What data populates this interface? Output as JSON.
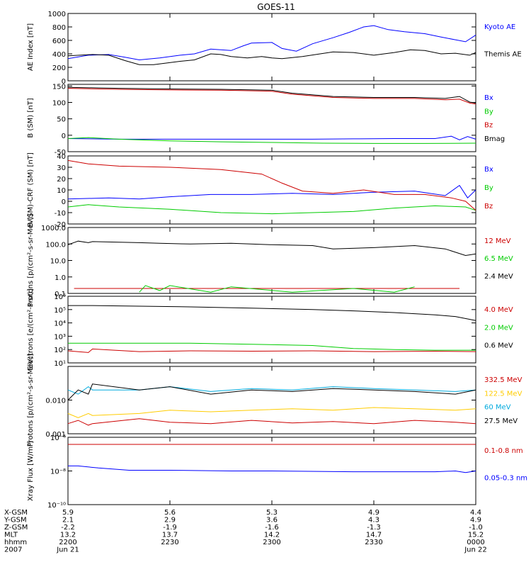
{
  "title": "GOES-11",
  "x_axis": {
    "row_labels": [
      "X-GSM",
      "Y-GSM",
      "Z-GSM",
      "MLT",
      "hhmm",
      "2007"
    ],
    "ticks": [
      {
        "t": 0,
        "values": [
          "5.9",
          "2.1",
          "-2.2",
          "13.2",
          "2200",
          "Jun 21"
        ]
      },
      {
        "t": 0.5,
        "values": [
          "5.6",
          "2.9",
          "-1.9",
          "13.7",
          "2230",
          ""
        ]
      },
      {
        "t": 1,
        "values": [
          "5.3",
          "3.6",
          "-1.6",
          "14.2",
          "2300",
          ""
        ]
      },
      {
        "t": 1.5,
        "values": [
          "4.9",
          "4.3",
          "-1.3",
          "14.7",
          "2330",
          ""
        ]
      },
      {
        "t": 2,
        "values": [
          "4.4",
          "4.9",
          "-1.0",
          "15.2",
          "0000",
          "Jun 22"
        ]
      }
    ],
    "range_hours": [
      0,
      2
    ]
  },
  "chart_data": [
    {
      "type": "line",
      "id": "ae",
      "ylabel": "AE Index [nT]",
      "scale": "linear",
      "ylim": [
        0,
        1000
      ],
      "yticks": [
        {
          "v": 0,
          "label": "0"
        },
        {
          "v": 200,
          "label": "200"
        },
        {
          "v": 400,
          "label": "400"
        },
        {
          "v": 600,
          "label": "600"
        },
        {
          "v": 800,
          "label": "800"
        },
        {
          "v": 1000,
          "label": "1000"
        }
      ],
      "series": [
        {
          "name": "Kyoto AE",
          "color": "#0000ff",
          "t": [
            0,
            0.1,
            0.2,
            0.28,
            0.35,
            0.45,
            0.55,
            0.62,
            0.7,
            0.8,
            0.86,
            0.9,
            1.0,
            1.05,
            1.12,
            1.2,
            1.3,
            1.38,
            1.45,
            1.5,
            1.57,
            1.65,
            1.75,
            1.83,
            1.9,
            1.95,
            2.0
          ],
          "values": [
            330,
            380,
            390,
            350,
            310,
            340,
            380,
            400,
            470,
            450,
            520,
            560,
            570,
            480,
            440,
            550,
            640,
            720,
            800,
            820,
            760,
            730,
            700,
            650,
            610,
            580,
            680
          ]
        },
        {
          "name": "Themis AE",
          "color": "#000000",
          "t": [
            0,
            0.12,
            0.2,
            0.28,
            0.35,
            0.42,
            0.55,
            0.62,
            0.7,
            0.75,
            0.8,
            0.88,
            0.95,
            1.0,
            1.05,
            1.15,
            1.3,
            1.4,
            1.5,
            1.6,
            1.68,
            1.75,
            1.83,
            1.9,
            1.97,
            2.0
          ],
          "values": [
            370,
            390,
            380,
            300,
            240,
            240,
            290,
            310,
            400,
            390,
            360,
            340,
            360,
            340,
            330,
            360,
            430,
            420,
            380,
            420,
            460,
            450,
            400,
            410,
            380,
            420
          ]
        }
      ]
    },
    {
      "type": "line",
      "id": "bsm",
      "ylabel": "B (SM) [nT]",
      "scale": "linear",
      "ylim": [
        -50,
        155
      ],
      "yticks": [
        {
          "v": -50,
          "label": "-50"
        },
        {
          "v": 0,
          "label": "0"
        },
        {
          "v": 50,
          "label": "50"
        },
        {
          "v": 100,
          "label": "100"
        },
        {
          "v": 150,
          "label": "150"
        }
      ],
      "series": [
        {
          "name": "Bx",
          "color": "#0000ff",
          "t": [
            0,
            0.25,
            0.5,
            0.75,
            1.0,
            1.2,
            1.4,
            1.6,
            1.8,
            1.88,
            1.92,
            1.96,
            2.0
          ],
          "values": [
            -10,
            -12,
            -12,
            -12,
            -12,
            -12,
            -11,
            -10,
            -10,
            -3,
            -14,
            -4,
            -12
          ]
        },
        {
          "name": "By",
          "color": "#00cc00",
          "t": [
            0,
            0.1,
            0.25,
            0.5,
            0.75,
            1.0,
            1.25,
            1.5,
            1.75,
            2.0
          ],
          "values": [
            -10,
            -7,
            -12,
            -17,
            -20,
            -22,
            -24,
            -25,
            -25,
            -24
          ]
        },
        {
          "name": "Bz",
          "color": "#cc0000",
          "t": [
            0,
            0.25,
            0.5,
            0.75,
            1.0,
            1.1,
            1.3,
            1.5,
            1.7,
            1.85,
            1.92,
            1.97,
            2.0
          ],
          "values": [
            143,
            140,
            138,
            137,
            134,
            125,
            115,
            112,
            112,
            108,
            110,
            98,
            95
          ]
        },
        {
          "name": "Bmag",
          "color": "#000000",
          "t": [
            0,
            0.25,
            0.5,
            0.75,
            1.0,
            1.1,
            1.3,
            1.5,
            1.7,
            1.85,
            1.92,
            1.97,
            2.0
          ],
          "values": [
            146,
            143,
            141,
            140,
            137,
            128,
            118,
            115,
            115,
            112,
            118,
            101,
            98
          ]
        }
      ]
    },
    {
      "type": "line",
      "id": "bcrf",
      "ylabel": "B (SM)-CRF (SM) [nT]",
      "scale": "linear",
      "ylim": [
        -20,
        40
      ],
      "yticks": [
        {
          "v": -20,
          "label": "-20"
        },
        {
          "v": -10,
          "label": "-10"
        },
        {
          "v": 0,
          "label": "0"
        },
        {
          "v": 10,
          "label": "10"
        },
        {
          "v": 20,
          "label": "20"
        },
        {
          "v": 30,
          "label": "30"
        },
        {
          "v": 40,
          "label": "40"
        }
      ],
      "series": [
        {
          "name": "Bx",
          "color": "#0000ff",
          "t": [
            0,
            0.2,
            0.35,
            0.5,
            0.7,
            0.9,
            1.1,
            1.3,
            1.5,
            1.7,
            1.85,
            1.92,
            1.96,
            2.0
          ],
          "values": [
            2,
            3,
            2,
            4,
            6,
            6,
            7,
            6,
            8,
            9,
            5,
            14,
            3,
            10
          ]
        },
        {
          "name": "By",
          "color": "#00cc00",
          "t": [
            0,
            0.1,
            0.25,
            0.5,
            0.75,
            1.0,
            1.2,
            1.4,
            1.6,
            1.8,
            1.95,
            2.0
          ],
          "values": [
            -5,
            -3,
            -5,
            -7,
            -10,
            -11,
            -10,
            -9,
            -6,
            -4,
            -5,
            -8
          ]
        },
        {
          "name": "Bz",
          "color": "#cc0000",
          "t": [
            0,
            0.1,
            0.25,
            0.5,
            0.75,
            0.95,
            1.05,
            1.15,
            1.3,
            1.45,
            1.6,
            1.75,
            1.88,
            1.95,
            2.0
          ],
          "values": [
            36,
            33,
            31,
            30,
            28,
            24,
            16,
            9,
            7,
            10,
            6,
            6,
            3,
            0,
            -8
          ]
        }
      ]
    },
    {
      "type": "line",
      "id": "protons_low",
      "ylabel": "Protons [p/(cm²-s-sr-MeV)]",
      "scale": "log",
      "ylim": [
        0.1,
        1000
      ],
      "yticks": [
        {
          "v": 0.1,
          "label": "0.1"
        },
        {
          "v": 1,
          "label": "1.0"
        },
        {
          "v": 10,
          "label": "10.0"
        },
        {
          "v": 100,
          "label": "100.0"
        },
        {
          "v": 1000,
          "label": "1000.0"
        }
      ],
      "series": [
        {
          "name": "12 MeV",
          "color": "#cc0000",
          "t": [
            0.03,
            0.05,
            1.88,
            1.92
          ],
          "values": [
            0.2,
            0.2,
            0.2,
            0.2
          ]
        },
        {
          "name": "6.5 MeV",
          "color": "#00cc00",
          "t": [
            0.35,
            0.38,
            0.45,
            0.5,
            0.7,
            0.8,
            1.1,
            1.4,
            1.6,
            1.7
          ],
          "values": [
            0.12,
            0.3,
            0.15,
            0.3,
            0.12,
            0.25,
            0.12,
            0.2,
            0.12,
            0.25
          ]
        },
        {
          "name": "2.4 MeV",
          "color": "#000000",
          "t": [
            0,
            0.05,
            0.1,
            0.12,
            0.35,
            0.45,
            0.6,
            0.8,
            1.0,
            1.2,
            1.3,
            1.5,
            1.7,
            1.85,
            1.95,
            2.0
          ],
          "values": [
            90,
            150,
            120,
            140,
            120,
            110,
            100,
            110,
            90,
            80,
            50,
            60,
            80,
            50,
            20,
            25
          ]
        }
      ]
    },
    {
      "type": "line",
      "id": "electrons",
      "ylabel": "Electrons [e/(cm²-s-sr)]",
      "scale": "log",
      "ylim": [
        10,
        1000000
      ],
      "yticks": [
        {
          "v": 10,
          "label": "10¹"
        },
        {
          "v": 100,
          "label": "10²"
        },
        {
          "v": 1000,
          "label": "10³"
        },
        {
          "v": 10000,
          "label": "10⁴"
        },
        {
          "v": 100000,
          "label": "10⁵"
        },
        {
          "v": 1000000,
          "label": "10⁶"
        }
      ],
      "series": [
        {
          "name": "4.0 MeV",
          "color": "#cc0000",
          "t": [
            0,
            0.1,
            0.12,
            0.35,
            0.6,
            0.9,
            1.2,
            1.5,
            1.8,
            2.0
          ],
          "values": [
            80,
            60,
            110,
            70,
            80,
            75,
            80,
            70,
            75,
            70
          ]
        },
        {
          "name": "2.0 MeV",
          "color": "#00cc00",
          "t": [
            0,
            0.12,
            0.35,
            0.6,
            0.9,
            1.2,
            1.4,
            1.6,
            1.8,
            2.0
          ],
          "values": [
            300,
            300,
            300,
            300,
            250,
            200,
            120,
            100,
            90,
            90
          ]
        },
        {
          "name": "0.6 MeV",
          "color": "#000000",
          "t": [
            0,
            0.12,
            0.35,
            0.6,
            0.9,
            1.2,
            1.4,
            1.6,
            1.8,
            1.9,
            2.0
          ],
          "values": [
            200000,
            200000,
            180000,
            160000,
            130000,
            100000,
            80000,
            60000,
            40000,
            30000,
            15000
          ]
        }
      ]
    },
    {
      "type": "line",
      "id": "protons_high",
      "ylabel": "Protons [p/(cm²-s-sr-MeV)]",
      "scale": "log",
      "ylim": [
        0.001,
        0.1
      ],
      "yticks": [
        {
          "v": 0.001,
          "label": "0.001"
        },
        {
          "v": 0.01,
          "label": "0.010"
        }
      ],
      "series": [
        {
          "name": "332.5 MeV",
          "color": "#cc0000",
          "t": [
            0,
            0.05,
            0.1,
            0.12,
            0.35,
            0.5,
            0.7,
            0.9,
            1.1,
            1.3,
            1.5,
            1.7,
            1.9,
            2.0
          ],
          "values": [
            0.002,
            0.0025,
            0.0018,
            0.002,
            0.0028,
            0.0022,
            0.002,
            0.0025,
            0.0021,
            0.0023,
            0.002,
            0.0025,
            0.0022,
            0.002
          ]
        },
        {
          "name": "122.5 MeV",
          "color": "#ffcc00",
          "t": [
            0,
            0.05,
            0.1,
            0.12,
            0.35,
            0.5,
            0.7,
            0.9,
            1.1,
            1.3,
            1.5,
            1.7,
            1.9,
            2.0
          ],
          "values": [
            0.004,
            0.003,
            0.004,
            0.0035,
            0.004,
            0.005,
            0.0045,
            0.005,
            0.0055,
            0.005,
            0.006,
            0.0055,
            0.005,
            0.0055
          ]
        },
        {
          "name": "60 MeV",
          "color": "#00aadd",
          "t": [
            0,
            0.05,
            0.1,
            0.12,
            0.35,
            0.5,
            0.7,
            0.9,
            1.1,
            1.3,
            1.5,
            1.7,
            1.9,
            2.0
          ],
          "values": [
            0.02,
            0.015,
            0.025,
            0.02,
            0.02,
            0.025,
            0.018,
            0.022,
            0.02,
            0.025,
            0.022,
            0.02,
            0.018,
            0.02
          ]
        },
        {
          "name": "27.5 MeV",
          "color": "#000000",
          "t": [
            0,
            0.05,
            0.1,
            0.12,
            0.35,
            0.5,
            0.7,
            0.9,
            1.1,
            1.3,
            1.5,
            1.7,
            1.9,
            2.0
          ],
          "values": [
            0.01,
            0.02,
            0.015,
            0.03,
            0.02,
            0.025,
            0.015,
            0.02,
            0.018,
            0.022,
            0.02,
            0.018,
            0.015,
            0.02
          ]
        }
      ]
    },
    {
      "type": "line",
      "id": "xray",
      "ylabel": "Xray Flux [W/m²]",
      "scale": "log",
      "ylim": [
        1e-10,
        1e-06
      ],
      "yticks": [
        {
          "v": 1e-10,
          "label": "10⁻¹⁰"
        },
        {
          "v": 1e-08,
          "label": "10⁻⁸"
        },
        {
          "v": 1e-06,
          "label": "10⁻⁶"
        }
      ],
      "series": [
        {
          "name": "0.1-0.8 nm",
          "color": "#cc0000",
          "t": [
            0,
            2.0
          ],
          "values": [
            3.8e-07,
            3.8e-07
          ]
        },
        {
          "name": "0.05-0.3 nm",
          "color": "#0000ff",
          "t": [
            0,
            0.05,
            0.15,
            0.3,
            0.5,
            0.8,
            1.0,
            1.4,
            1.8,
            1.9,
            1.95,
            2.0
          ],
          "values": [
            2e-08,
            2e-08,
            1.5e-08,
            1.1e-08,
            1.1e-08,
            1e-08,
            1e-08,
            9e-09,
            9e-09,
            1e-08,
            8e-09,
            1e-08
          ]
        }
      ]
    }
  ]
}
